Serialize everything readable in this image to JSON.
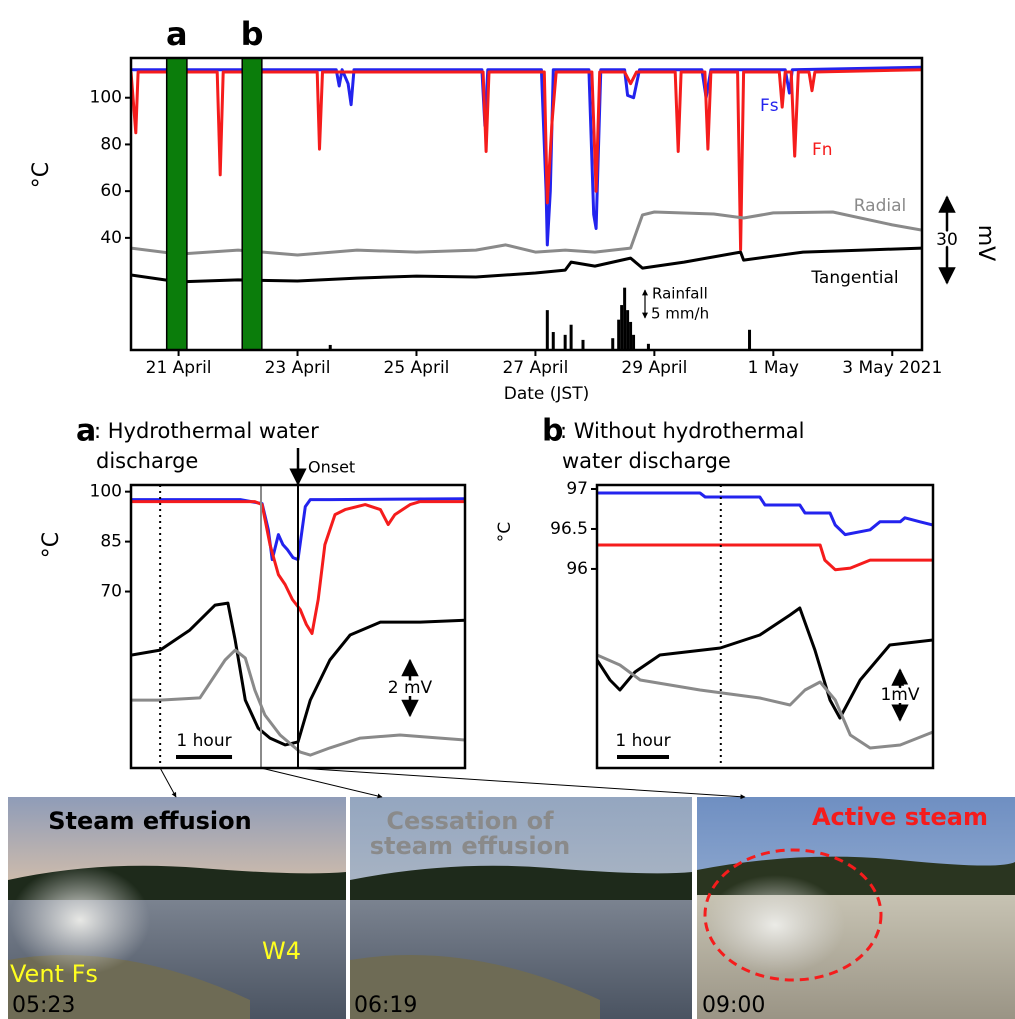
{
  "chart_data": [
    {
      "type": "line",
      "xlabel": "Date (JST)",
      "ylabel": "°C",
      "y2_unit": "mV",
      "xlim": [
        20.2,
        33.5
      ],
      "ylim": [
        -8,
        117
      ],
      "y2lim": [
        0,
        102
      ],
      "y3lim": [
        0,
        52
      ],
      "xticks": [
        {
          "value": 21,
          "label": "21 April"
        },
        {
          "value": 23,
          "label": "23 April"
        },
        {
          "value": 25,
          "label": "25 April"
        },
        {
          "value": 27,
          "label": "27 April"
        },
        {
          "value": 29,
          "label": "29 April"
        },
        {
          "value": 31,
          "label": "1 May"
        },
        {
          "value": 33,
          "label": "3 May 2021"
        }
      ],
      "yticks": [
        40,
        60,
        80,
        100
      ],
      "highlights": [
        {
          "label": "a",
          "start": 20.8,
          "end": 21.14,
          "color": "#0b7d0b"
        },
        {
          "label": "b",
          "start": 22.07,
          "end": 22.4,
          "color": "#0b7d0b"
        }
      ],
      "scale_bars": [
        {
          "value": 30,
          "axis": "y2"
        },
        {
          "value": 5,
          "label": "5 mm/h",
          "axis": "y3"
        }
      ],
      "series": [
        {
          "name": "Fs",
          "color": "#2323ee",
          "x": [
            20.2,
            21.0,
            21.02,
            21.05,
            23.65,
            23.7,
            23.75,
            23.85,
            23.9,
            23.95,
            26.1,
            26.15,
            26.2,
            27.1,
            27.18,
            27.2,
            27.25,
            27.3,
            27.9,
            27.98,
            28.02,
            28.1,
            28.5,
            28.55,
            28.65,
            28.75,
            29.8,
            29.87,
            29.95,
            31.2,
            31.27,
            31.32,
            33.5
          ],
          "values": [
            112,
            112,
            108,
            112,
            112,
            105,
            112,
            106,
            97,
            112,
            112,
            88,
            112,
            112,
            60,
            37,
            60,
            112,
            112,
            50,
            44,
            112,
            112,
            101,
            100,
            112,
            112,
            100,
            112,
            112,
            102,
            112,
            113
          ]
        },
        {
          "name": "Fn",
          "color": "#f51c1c",
          "x": [
            20.2,
            20.28,
            20.32,
            20.4,
            20.95,
            21.0,
            21.05,
            21.65,
            21.7,
            21.75,
            23.33,
            23.37,
            23.42,
            26.12,
            26.17,
            26.22,
            27.15,
            27.2,
            27.28,
            27.35,
            27.95,
            28.02,
            28.08,
            28.5,
            28.6,
            28.7,
            29.35,
            29.4,
            29.45,
            29.85,
            29.9,
            29.95,
            30.4,
            30.45,
            30.5,
            31.1,
            31.15,
            31.2,
            31.3,
            31.36,
            31.42,
            31.6,
            31.65,
            31.7,
            33.5
          ],
          "values": [
            111,
            85,
            111,
            111,
            111,
            73,
            111,
            111,
            67,
            111,
            111,
            78,
            111,
            111,
            77,
            111,
            111,
            55,
            90,
            111,
            111,
            60,
            111,
            111,
            106,
            111,
            111,
            77,
            111,
            111,
            78,
            111,
            111,
            35,
            111,
            111,
            96,
            111,
            111,
            75,
            111,
            111,
            103,
            111,
            112
          ]
        },
        {
          "name": "Radial",
          "color": "#8a8a8a",
          "axis": "y2",
          "x": [
            20.2,
            21.0,
            22.0,
            23.0,
            24.0,
            25.0,
            26.0,
            26.5,
            27.0,
            27.5,
            28.0,
            28.6,
            28.8,
            29.0,
            30.0,
            30.5,
            31.0,
            32.0,
            33.0,
            33.5
          ],
          "values": [
            35.6,
            33.5,
            34.9,
            33.2,
            34.9,
            34.2,
            34.9,
            36.7,
            34.2,
            34.9,
            34.2,
            35.6,
            47.2,
            48.2,
            47.5,
            46.1,
            47.9,
            48.2,
            43.7,
            41.9
          ]
        },
        {
          "name": "Tangential",
          "color": "#000000",
          "axis": "y2",
          "x": [
            20.2,
            21.0,
            22.0,
            23.0,
            24.0,
            25.0,
            26.0,
            27.0,
            27.5,
            27.6,
            28.0,
            28.6,
            28.8,
            29.5,
            30.45,
            30.5,
            31.5,
            32.5,
            33.5
          ],
          "values": [
            26.2,
            23.8,
            24.5,
            24.1,
            25.1,
            25.8,
            25.5,
            26.9,
            27.9,
            30.7,
            29.3,
            32.1,
            28.6,
            30.7,
            34.2,
            31.4,
            34.2,
            34.9,
            35.6
          ]
        }
      ],
      "rainfall": {
        "name": "Rainfall",
        "color": "#000000",
        "axis": "y3",
        "x": [
          23.55,
          27.2,
          27.3,
          27.5,
          27.6,
          27.8,
          28.3,
          28.4,
          28.45,
          28.5,
          28.55,
          28.6,
          28.65,
          28.9,
          30.6
        ],
        "values": [
          0.9,
          7.1,
          3.2,
          2.7,
          4.5,
          1.8,
          2.1,
          5.4,
          8.0,
          11.1,
          7.1,
          5.0,
          2.7,
          1.1,
          3.6
        ]
      }
    },
    {
      "type": "line",
      "panel_label": "a",
      "title_lines": [
        ": Hydrothermal water",
        "discharge"
      ],
      "ylabel": "°C",
      "xlim": [
        0,
        5.96
      ],
      "ylim": [
        17,
        102
      ],
      "y2lim": [
        0,
        10.3
      ],
      "yticks": [
        70,
        85,
        100
      ],
      "scale_bars": [
        {
          "value": 1,
          "label": "1 hour",
          "axis": "x"
        },
        {
          "value": 2,
          "label": "2 mV",
          "axis": "y2"
        }
      ],
      "markers": [
        {
          "x": 0.52,
          "style": "dotted"
        },
        {
          "x": 2.32,
          "style": "gray"
        },
        {
          "x": 2.98,
          "style": "onset",
          "label": "Onset"
        }
      ],
      "series": [
        {
          "color": "#2323ee",
          "x": [
            0,
            1.95,
            2.34,
            2.45,
            2.52,
            2.63,
            2.71,
            2.79,
            2.89,
            2.98,
            3.11,
            3.2,
            3.55,
            5.96
          ],
          "values": [
            97.6,
            97.6,
            96.4,
            88.6,
            79.6,
            87.1,
            84.1,
            82.6,
            80.2,
            79.6,
            95.5,
            97.6,
            97.6,
            97.9
          ]
        },
        {
          "color": "#f51c1c",
          "x": [
            0,
            2.21,
            2.34,
            2.48,
            2.63,
            2.75,
            2.88,
            3.02,
            3.13,
            3.23,
            3.34,
            3.46,
            3.64,
            3.82,
            4.18,
            4.45,
            4.59,
            4.71,
            4.98,
            5.16,
            5.96
          ],
          "values": [
            97,
            97,
            96.1,
            84.1,
            75.1,
            72.1,
            67.6,
            64.6,
            60.1,
            57.4,
            67.6,
            84.1,
            93.1,
            94.6,
            96.1,
            94.6,
            90.1,
            93.1,
            96.1,
            97,
            97
          ]
        },
        {
          "color": "#000000",
          "axis": "y2",
          "x": [
            0,
            0.52,
            1.05,
            1.5,
            1.73,
            1.86,
            2.04,
            2.27,
            2.48,
            2.75,
            2.98,
            3.2,
            3.55,
            3.91,
            4.45,
            5.16,
            5.96
          ],
          "values": [
            4.11,
            4.29,
            5.02,
            5.93,
            6.0,
            4.65,
            2.47,
            1.45,
            1.09,
            0.84,
            0.95,
            2.47,
            3.93,
            4.84,
            5.31,
            5.31,
            5.38
          ]
        },
        {
          "color": "#8a8a8a",
          "axis": "y2",
          "x": [
            0,
            0.52,
            1.23,
            1.68,
            1.86,
            2.04,
            2.21,
            2.39,
            2.66,
            3.02,
            3.2,
            3.55,
            4.09,
            4.8,
            5.52,
            5.96
          ],
          "values": [
            2.47,
            2.47,
            2.55,
            3.93,
            4.29,
            4.0,
            2.84,
            1.93,
            1.2,
            0.58,
            0.47,
            0.73,
            1.09,
            1.2,
            1.09,
            1.02
          ]
        }
      ]
    },
    {
      "type": "line",
      "panel_label": "b",
      "title_lines": [
        ": Without hydrothermal",
        "water discharge"
      ],
      "ylabel": "°C",
      "xlim": [
        0,
        6.46
      ],
      "ylim": [
        93.51,
        97.05
      ],
      "y2lim": [
        0,
        5.66
      ],
      "yticks": [
        96,
        96.5,
        97
      ],
      "scale_bars": [
        {
          "value": 1,
          "label": "1 hour",
          "axis": "x"
        },
        {
          "value": 1,
          "label": "1mV",
          "axis": "y2"
        }
      ],
      "markers": [
        {
          "x": 2.38,
          "style": "dotted"
        }
      ],
      "series": [
        {
          "color": "#2323ee",
          "x": [
            0,
            1.98,
            2.08,
            3.13,
            3.23,
            3.9,
            4.0,
            4.48,
            4.58,
            4.77,
            5.25,
            5.44,
            5.83,
            5.92,
            6.21,
            6.46
          ],
          "values": [
            96.95,
            96.95,
            96.9,
            96.9,
            96.8,
            96.8,
            96.7,
            96.7,
            96.55,
            96.43,
            96.49,
            96.59,
            96.59,
            96.64,
            96.59,
            96.55
          ]
        },
        {
          "color": "#f51c1c",
          "x": [
            0,
            4.29,
            4.38,
            4.58,
            4.87,
            5.25,
            6.46
          ],
          "values": [
            96.3,
            96.3,
            96.11,
            95.99,
            96.01,
            96.11,
            96.11
          ]
        },
        {
          "color": "#000000",
          "axis": "y2",
          "x": [
            0,
            0.25,
            0.44,
            0.73,
            1.21,
            2.37,
            3.13,
            3.71,
            3.9,
            4.19,
            4.48,
            4.67,
            5.06,
            5.63,
            6.46
          ],
          "values": [
            2.16,
            1.76,
            1.56,
            1.92,
            2.26,
            2.4,
            2.66,
            3.06,
            3.2,
            2.36,
            1.36,
            1.0,
            1.76,
            2.46,
            2.56
          ]
        },
        {
          "color": "#8a8a8a",
          "axis": "y2",
          "x": [
            0,
            0.44,
            0.83,
            1.98,
            3.13,
            3.71,
            4.0,
            4.29,
            4.58,
            4.87,
            5.25,
            5.83,
            6.46
          ],
          "values": [
            2.26,
            2.06,
            1.76,
            1.56,
            1.4,
            1.26,
            1.56,
            1.72,
            1.36,
            0.66,
            0.4,
            0.46,
            0.72
          ]
        }
      ]
    }
  ],
  "photos": [
    {
      "caption_lines": [
        "Steam effusion"
      ],
      "caption_color": "#000000",
      "time": "05:23",
      "labels": [
        "Vent Fs",
        "W4"
      ]
    },
    {
      "caption_lines": [
        "Cessation of",
        "steam effusion"
      ],
      "caption_color": "#8a8a8a",
      "time": "06:19"
    },
    {
      "caption_lines": [
        "Active steam"
      ],
      "caption_color": "#f51c1c",
      "time": "09:00"
    }
  ]
}
